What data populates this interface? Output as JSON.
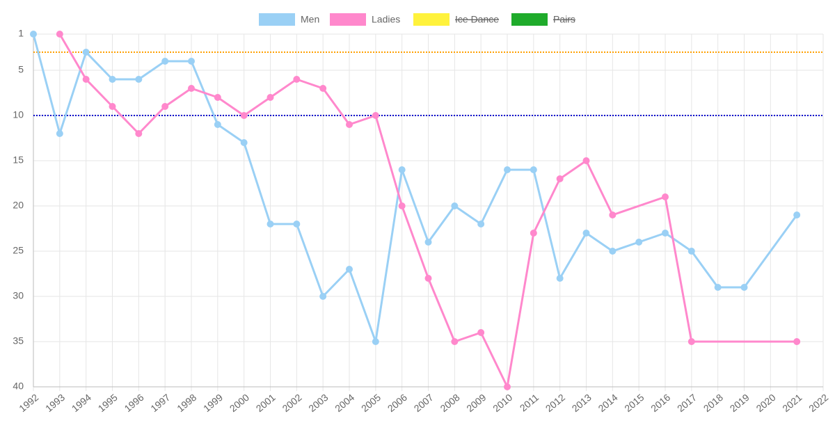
{
  "chart_data": {
    "type": "line",
    "categories": [
      "1992",
      "1993",
      "1994",
      "1995",
      "1996",
      "1997",
      "1998",
      "1999",
      "2000",
      "2001",
      "2002",
      "2003",
      "2004",
      "2005",
      "2006",
      "2007",
      "2008",
      "2009",
      "2010",
      "2011",
      "2012",
      "2013",
      "2014",
      "2015",
      "2016",
      "2017",
      "2018",
      "2019",
      "2020",
      "2021",
      "2022"
    ],
    "series": [
      {
        "name": "Men",
        "color": "#9ad0f5",
        "values": [
          1,
          12,
          3,
          6,
          6,
          4,
          4,
          11,
          13,
          22,
          22,
          30,
          27,
          35,
          16,
          24,
          20,
          22,
          16,
          16,
          28,
          23,
          25,
          24,
          23,
          25,
          29,
          29,
          null,
          21,
          null
        ]
      },
      {
        "name": "Ladies",
        "color": "#ff88cc",
        "values": [
          null,
          1,
          6,
          9,
          12,
          9,
          7,
          8,
          10,
          8,
          6,
          7,
          11,
          10,
          20,
          28,
          35,
          34,
          40,
          23,
          17,
          15,
          21,
          null,
          19,
          35,
          null,
          null,
          null,
          35,
          null
        ]
      },
      {
        "name": "Ice Dance",
        "color": "#fff23c",
        "hidden": true
      },
      {
        "name": "Pairs",
        "color": "#1fab2b",
        "hidden": true
      }
    ],
    "ylim": [
      1,
      40
    ],
    "y_reversed": true,
    "yticks": [
      1,
      5,
      10,
      15,
      20,
      25,
      30,
      35,
      40
    ],
    "grid": true,
    "span_gaps": true,
    "legend": "top",
    "reference_lines": [
      {
        "value": 3,
        "color": "#ff9f00"
      },
      {
        "value": 10,
        "color": "#0000cc"
      }
    ]
  }
}
